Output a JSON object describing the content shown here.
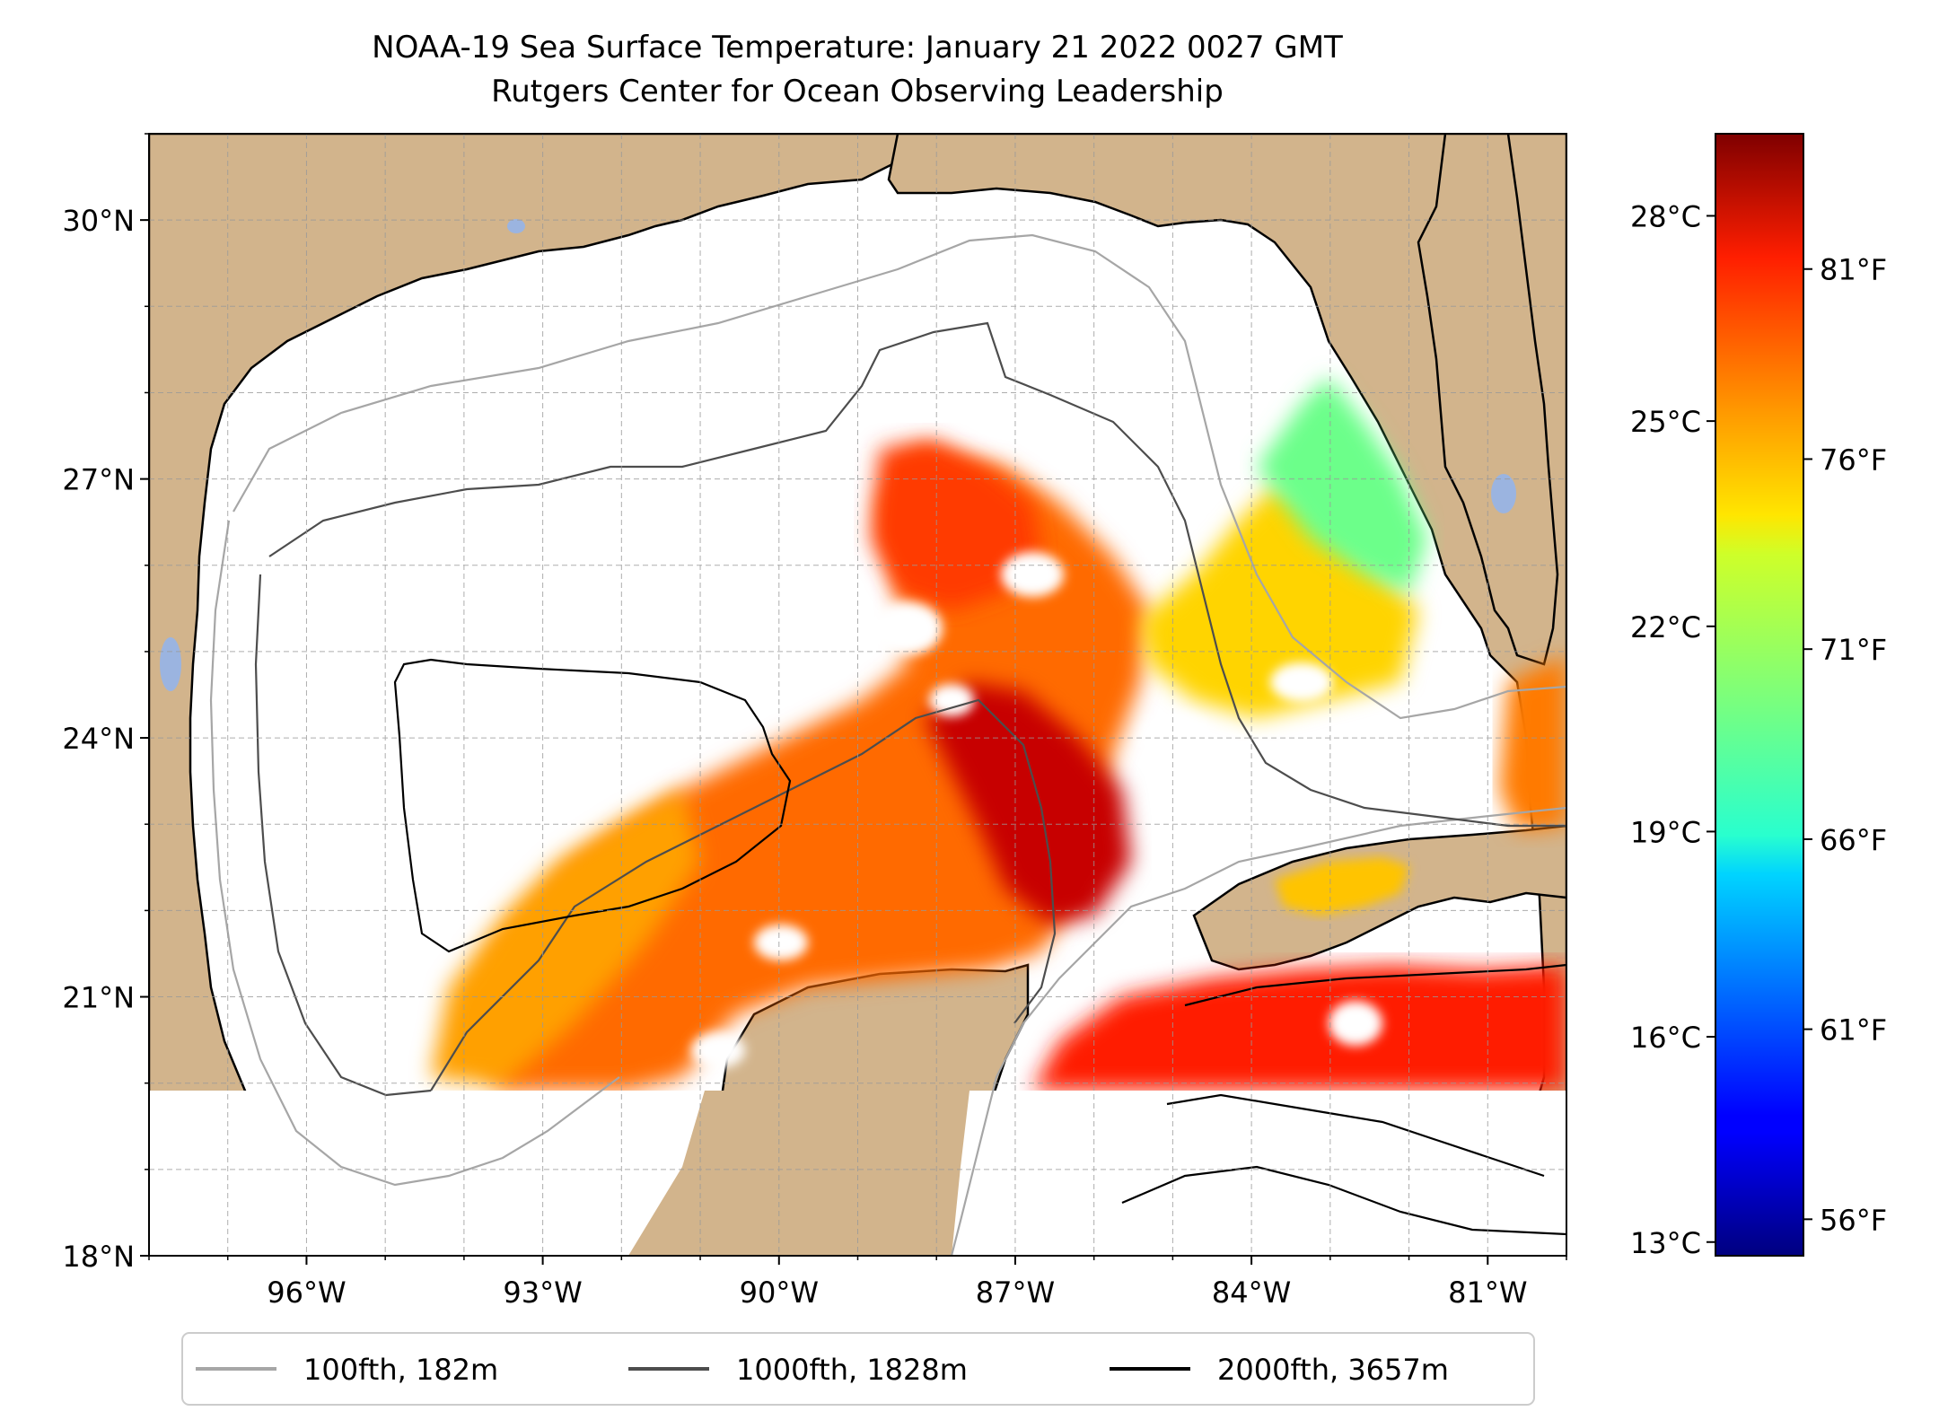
{
  "title_line1": "NOAA-19 Sea Surface Temperature: January 21 2022 0027 GMT",
  "title_line2": "Rutgers Center for Ocean Observing Leadership",
  "map": {
    "lon_range": [
      -98,
      -80
    ],
    "lat_range": [
      18,
      31
    ],
    "lat_ticks": [
      {
        "value": 30,
        "label": "30°N"
      },
      {
        "value": 27,
        "label": "27°N"
      },
      {
        "value": 24,
        "label": "24°N"
      },
      {
        "value": 21,
        "label": "21°N"
      },
      {
        "value": 18,
        "label": "18°N"
      }
    ],
    "lon_ticks": [
      {
        "value": -96,
        "label": "96°W"
      },
      {
        "value": -93,
        "label": "93°W"
      },
      {
        "value": -90,
        "label": "90°W"
      },
      {
        "value": -87,
        "label": "87°W"
      },
      {
        "value": -84,
        "label": "84°W"
      },
      {
        "value": -81,
        "label": "81°W"
      }
    ],
    "land_color": "#d2b48c",
    "lake_color": "#9bb4e0",
    "grid": true
  },
  "colorbar": {
    "colormap": "jet",
    "range_c": [
      12.8,
      29.2
    ],
    "celsius_ticks": [
      {
        "value": 28,
        "label": "28°C"
      },
      {
        "value": 25,
        "label": "25°C"
      },
      {
        "value": 22,
        "label": "22°C"
      },
      {
        "value": 19,
        "label": "19°C"
      },
      {
        "value": 16,
        "label": "16°C"
      },
      {
        "value": 13,
        "label": "13°C"
      }
    ],
    "fahrenheit_ticks": [
      {
        "value": 81,
        "label": "81°F"
      },
      {
        "value": 76,
        "label": "76°F"
      },
      {
        "value": 71,
        "label": "71°F"
      },
      {
        "value": 66,
        "label": "66°F"
      },
      {
        "value": 61,
        "label": "61°F"
      },
      {
        "value": 56,
        "label": "56°F"
      }
    ]
  },
  "legend": [
    {
      "label": "100fth, 182m",
      "color": "#a6a6a6"
    },
    {
      "label": "1000fth, 1828m",
      "color": "#4d4d4d"
    },
    {
      "label": "2000fth, 3657m",
      "color": "#000000"
    }
  ]
}
